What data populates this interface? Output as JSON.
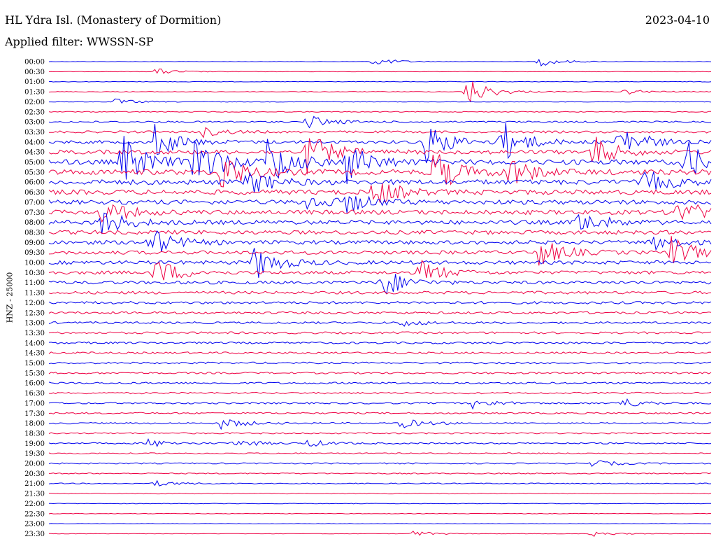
{
  "header": {
    "title": "HL Ydra Isl. (Monastery of Dormition)",
    "date": "2023-04-10",
    "filter": "Applied filter: WWSSN-SP"
  },
  "axis": {
    "ylabel": "HNZ - 25000"
  },
  "colors": {
    "blue": "#0000ee",
    "red": "#ee0044"
  },
  "chart_data": {
    "type": "line",
    "title": "HL Ydra Isl. (Monastery of Dormition)",
    "ylabel": "HNZ - 25000",
    "row_labels": [
      "00:00",
      "00:30",
      "01:00",
      "01:30",
      "02:00",
      "02:30",
      "03:00",
      "03:30",
      "04:00",
      "04:30",
      "05:00",
      "05:30",
      "06:00",
      "06:30",
      "07:00",
      "07:30",
      "08:00",
      "08:30",
      "09:00",
      "09:30",
      "10:00",
      "10:30",
      "11:00",
      "11:30",
      "12:00",
      "12:30",
      "13:00",
      "13:30",
      "14:00",
      "14:30",
      "15:00",
      "15:30",
      "16:00",
      "16:30",
      "17:00",
      "17:30",
      "18:00",
      "18:30",
      "19:00",
      "19:30",
      "20:00",
      "20:30",
      "21:00",
      "21:30",
      "22:00",
      "22:30",
      "23:00",
      "23:30"
    ],
    "series_colors": [
      "blue",
      "red"
    ],
    "noise_level": [
      0.3,
      0.3,
      0.4,
      0.5,
      0.5,
      0.6,
      1.2,
      1.6,
      2.2,
      3.0,
      3.6,
      3.8,
      3.6,
      3.4,
      3.2,
      3.2,
      3.0,
      2.8,
      2.8,
      2.6,
      2.6,
      2.4,
      2.2,
      2.0,
      1.8,
      1.6,
      1.5,
      1.5,
      1.4,
      1.4,
      1.3,
      1.3,
      1.3,
      1.2,
      1.2,
      1.1,
      1.1,
      1.0,
      1.0,
      0.9,
      0.9,
      0.8,
      0.7,
      0.6,
      0.4,
      0.4,
      0.3,
      0.3
    ],
    "events": [
      {
        "row": 0,
        "x": 0.49,
        "amp": 6
      },
      {
        "row": 0,
        "x": 0.74,
        "amp": 7
      },
      {
        "row": 1,
        "x": 0.16,
        "amp": 5
      },
      {
        "row": 3,
        "x": 0.63,
        "amp": 22
      },
      {
        "row": 3,
        "x": 0.87,
        "amp": 4
      },
      {
        "row": 4,
        "x": 0.1,
        "amp": 4
      },
      {
        "row": 6,
        "x": 0.39,
        "amp": 10
      },
      {
        "row": 7,
        "x": 0.23,
        "amp": 7
      },
      {
        "row": 8,
        "x": 0.16,
        "amp": 25
      },
      {
        "row": 8,
        "x": 0.57,
        "amp": 30
      },
      {
        "row": 8,
        "x": 0.68,
        "amp": 35
      },
      {
        "row": 8,
        "x": 0.86,
        "amp": 30
      },
      {
        "row": 9,
        "x": 0.39,
        "amp": 30
      },
      {
        "row": 9,
        "x": 0.82,
        "amp": 24
      },
      {
        "row": 10,
        "x": 0.11,
        "amp": 40
      },
      {
        "row": 10,
        "x": 0.22,
        "amp": 45
      },
      {
        "row": 10,
        "x": 0.33,
        "amp": 40
      },
      {
        "row": 10,
        "x": 0.45,
        "amp": 30
      },
      {
        "row": 10,
        "x": 0.96,
        "amp": 32
      },
      {
        "row": 11,
        "x": 0.26,
        "amp": 30
      },
      {
        "row": 11,
        "x": 0.58,
        "amp": 34
      },
      {
        "row": 11,
        "x": 0.69,
        "amp": 25
      },
      {
        "row": 12,
        "x": 0.3,
        "amp": 20
      },
      {
        "row": 12,
        "x": 0.9,
        "amp": 18
      },
      {
        "row": 13,
        "x": 0.49,
        "amp": 22
      },
      {
        "row": 14,
        "x": 0.45,
        "amp": 14
      },
      {
        "row": 14,
        "x": 0.39,
        "amp": 12
      },
      {
        "row": 15,
        "x": 0.08,
        "amp": 18
      },
      {
        "row": 15,
        "x": 0.95,
        "amp": 22
      },
      {
        "row": 16,
        "x": 0.08,
        "amp": 20
      },
      {
        "row": 16,
        "x": 0.8,
        "amp": 18
      },
      {
        "row": 18,
        "x": 0.15,
        "amp": 24
      },
      {
        "row": 18,
        "x": 0.91,
        "amp": 12
      },
      {
        "row": 19,
        "x": 0.74,
        "amp": 22
      },
      {
        "row": 19,
        "x": 0.94,
        "amp": 22
      },
      {
        "row": 20,
        "x": 0.31,
        "amp": 26
      },
      {
        "row": 21,
        "x": 0.16,
        "amp": 22
      },
      {
        "row": 21,
        "x": 0.56,
        "amp": 18
      },
      {
        "row": 22,
        "x": 0.5,
        "amp": 24
      },
      {
        "row": 26,
        "x": 0.53,
        "amp": 5
      },
      {
        "row": 34,
        "x": 0.64,
        "amp": 7
      },
      {
        "row": 34,
        "x": 0.86,
        "amp": 8
      },
      {
        "row": 36,
        "x": 0.26,
        "amp": 8
      },
      {
        "row": 36,
        "x": 0.53,
        "amp": 7
      },
      {
        "row": 38,
        "x": 0.15,
        "amp": 6
      },
      {
        "row": 38,
        "x": 0.28,
        "amp": 6
      },
      {
        "row": 38,
        "x": 0.39,
        "amp": 5
      },
      {
        "row": 40,
        "x": 0.82,
        "amp": 5
      },
      {
        "row": 42,
        "x": 0.16,
        "amp": 4
      },
      {
        "row": 47,
        "x": 0.55,
        "amp": 4
      },
      {
        "row": 47,
        "x": 0.82,
        "amp": 4
      }
    ]
  }
}
